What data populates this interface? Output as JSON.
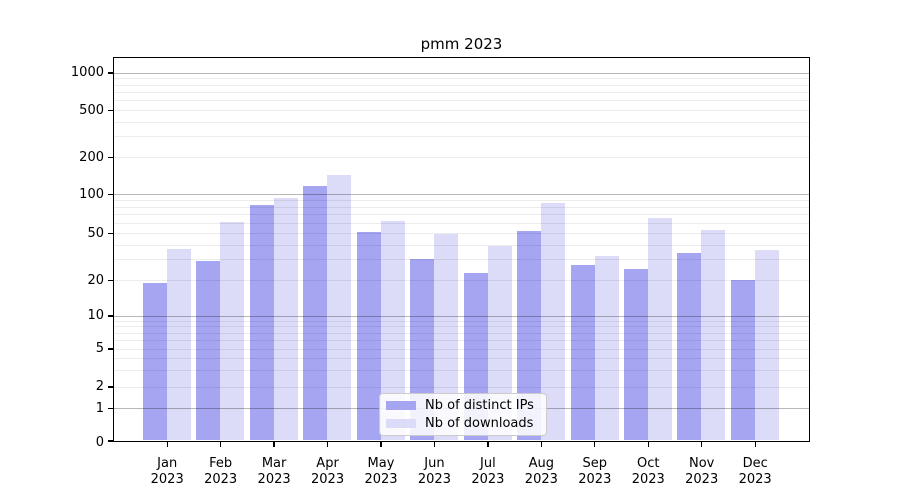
{
  "title": "pmm 2023",
  "chart_data": {
    "type": "bar",
    "title": "pmm 2023",
    "categories": [
      "Jan 2023",
      "Feb 2023",
      "Mar 2023",
      "Apr 2023",
      "May 2023",
      "Jun 2023",
      "Jul 2023",
      "Aug 2023",
      "Sep 2023",
      "Oct 2023",
      "Nov 2023",
      "Dec 2023"
    ],
    "month_names": [
      "Jan",
      "Feb",
      "Mar",
      "Apr",
      "May",
      "Jun",
      "Jul",
      "Aug",
      "Sep",
      "Oct",
      "Nov",
      "Dec"
    ],
    "year": "2023",
    "series": [
      {
        "name": "Nb of distinct IPs",
        "color": "#a5a5f2",
        "values": [
          19,
          29,
          82,
          117,
          51,
          30,
          23,
          52,
          27,
          25,
          34,
          20
        ]
      },
      {
        "name": "Nb of downloads",
        "color": "#dcdcf9",
        "values": [
          37,
          61,
          94,
          143,
          62,
          49,
          39,
          86,
          32,
          66,
          53,
          36
        ]
      }
    ],
    "xlabel": "",
    "ylabel": "",
    "y_ticks": [
      0,
      1,
      2,
      5,
      10,
      20,
      50,
      100,
      200,
      500,
      1000
    ],
    "y_scale": "symlog-asinh (log-like above 10, compressed linear near 0)",
    "ylim": [
      0,
      1000
    ],
    "grid": "horizontal, major gray at 1/10/100/1000 plus faint minors, drawn over bars",
    "legend_position": "lower center inside plot",
    "legend_entries": [
      "Nb of distinct IPs",
      "Nb of downloads"
    ]
  }
}
